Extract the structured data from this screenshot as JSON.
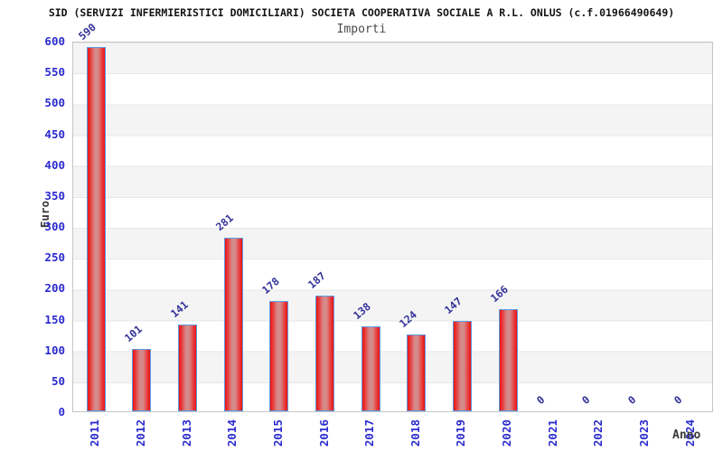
{
  "header": {
    "title": "SID (SERVIZI INFERMIERISTICI DOMICILIARI) SOCIETA COOPERATIVA SOCIALE A R.L. ONLUS (c.f.01966490649)",
    "subtitle": "Importi"
  },
  "chart_data": {
    "type": "bar",
    "title": "Importi",
    "categories": [
      "2011",
      "2012",
      "2013",
      "2014",
      "2015",
      "2016",
      "2017",
      "2018",
      "2019",
      "2020",
      "2021",
      "2022",
      "2023",
      "2024"
    ],
    "values": [
      590,
      101,
      141,
      281,
      178,
      187,
      138,
      124,
      147,
      166,
      0,
      0,
      0,
      0
    ],
    "xlabel": "Anno",
    "ylabel": "Euro",
    "ylim": [
      0,
      600
    ],
    "ytick_step": 50,
    "yticks": [
      0,
      50,
      100,
      150,
      200,
      250,
      300,
      350,
      400,
      450,
      500,
      550,
      600
    ],
    "grid": "alternating horizontal bands gray/white every 50 units, light gridlines",
    "legend_position": "none",
    "value_labels": "rotated -40deg above each bar, navy",
    "category_labels": "rotated 90deg (bottom-to-top), blue",
    "colors": {
      "bar_fill_edge": "#ee1212",
      "bar_fill_center": "#d18f8f",
      "bar_border": "#5b9be2",
      "tick_label_blue": "#2a2ace",
      "value_label_navy": "#333399",
      "band_gray": "#f4f4f4",
      "band_white": "#ffffff",
      "plot_border": "#c6c6c6",
      "title_color": "#141414",
      "subtitle_color": "#4b4b4b",
      "axis_title_color": "#3a3a3a"
    }
  }
}
